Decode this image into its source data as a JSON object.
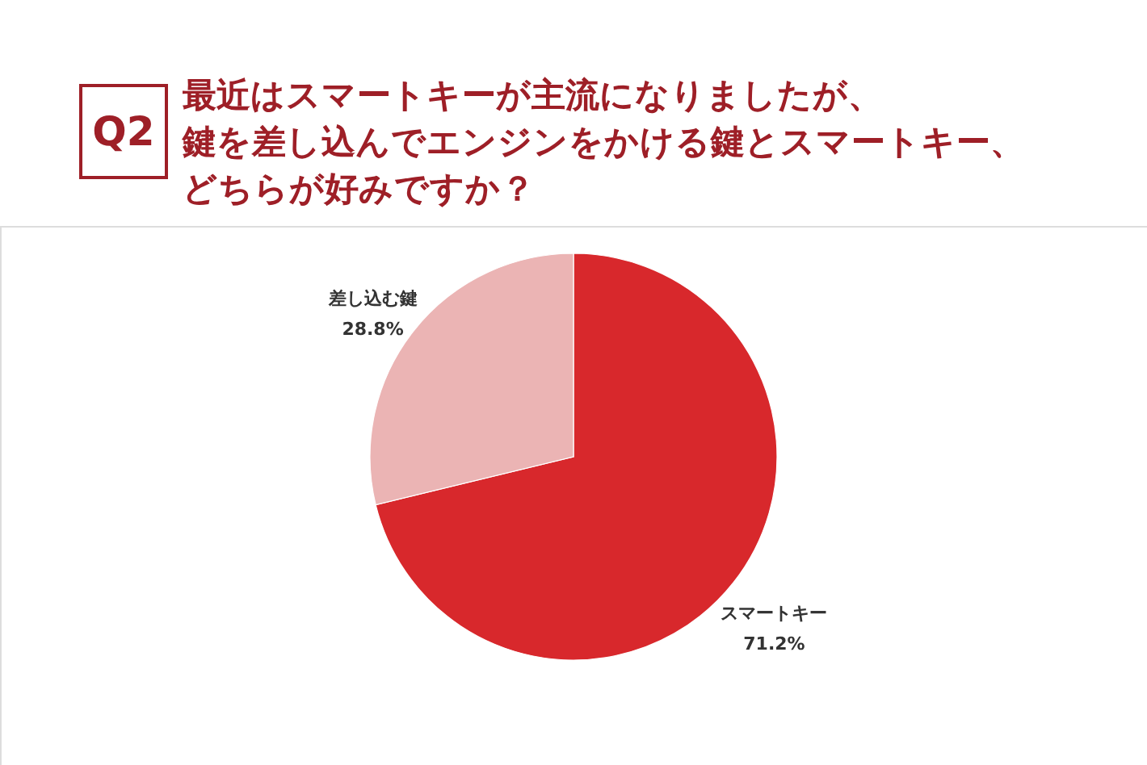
{
  "chart_data": {
    "type": "pie",
    "title": "最近はスマートキーが主流になりましたが、鍵を差し込んでエンジンをかける鍵とスマートキー、どちらが好みですか？",
    "annotations": [
      "Q2"
    ],
    "categories": [
      "スマートキー",
      "差し込む鍵"
    ],
    "values": [
      71.2,
      28.8
    ],
    "colors": [
      "#d8282c",
      "#ebb4b4"
    ],
    "value_labels": [
      "71.2%",
      "28.8%"
    ],
    "legend": false
  }
}
